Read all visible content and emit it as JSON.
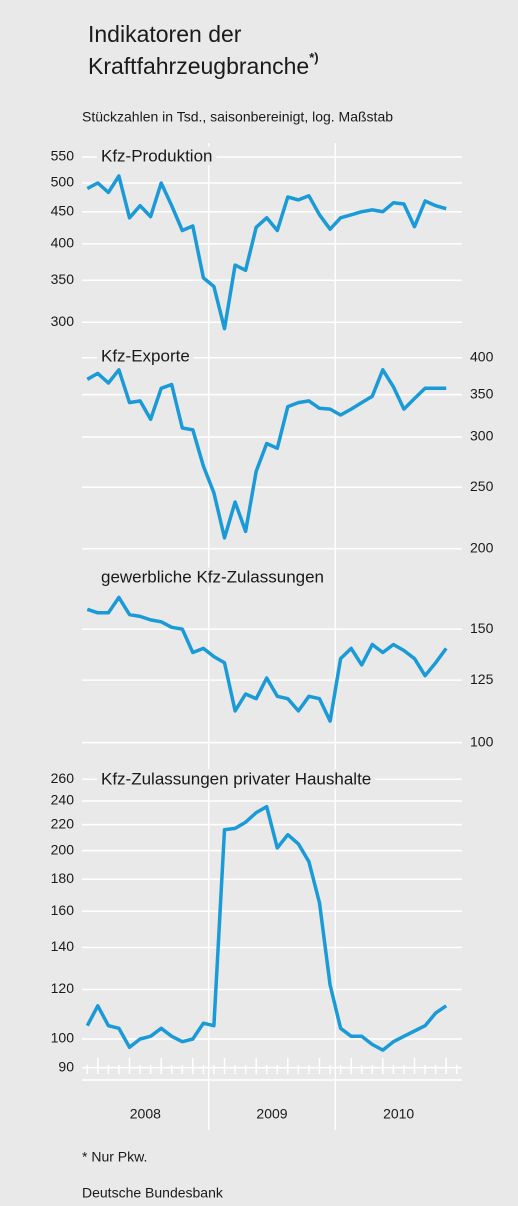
{
  "header": {
    "title_lines": [
      "Indikatoren der",
      "Kraftfahrzeugbranche"
    ],
    "title_note": "*)",
    "subtitle": "Stückzahlen in Tsd., saisonbereinigt, log. Maßstab"
  },
  "x_axis": {
    "labels": [
      "2008",
      "2009",
      "2010"
    ]
  },
  "chart_data": [
    {
      "type": "line",
      "title": "Kfz-Produktion",
      "log_scale": true,
      "axis_side": "left",
      "color": "#1a9ad6",
      "values": [
        490,
        500,
        483,
        513,
        440,
        460,
        442,
        500,
        460,
        420,
        427,
        353,
        342,
        293,
        370,
        363,
        425,
        440,
        420,
        475,
        470,
        477,
        445,
        422,
        440,
        445,
        450,
        453,
        450,
        465,
        463,
        426,
        468,
        460,
        455
      ],
      "ylim": [
        276,
        579
      ],
      "yticks": [
        300,
        350,
        400,
        450,
        500,
        550
      ]
    },
    {
      "type": "line",
      "title": "Kfz-Exporte",
      "log_scale": true,
      "axis_side": "right",
      "color": "#1a9ad6",
      "values": [
        370,
        378,
        365,
        383,
        340,
        342,
        320,
        358,
        363,
        310,
        308,
        270,
        245,
        208,
        237,
        213,
        265,
        293,
        288,
        335,
        340,
        342,
        333,
        332,
        325,
        332,
        340,
        348,
        383,
        360,
        332,
        345,
        358,
        358,
        358
      ],
      "ylim": [
        192,
        419
      ],
      "yticks": [
        200,
        250,
        300,
        350,
        400
      ]
    },
    {
      "type": "line",
      "title": "gewerbliche Kfz-Zulassungen",
      "log_scale": true,
      "axis_side": "right",
      "color": "#1a9ad6",
      "values": [
        161,
        159,
        159,
        168,
        158,
        157,
        155,
        154,
        151,
        150,
        138,
        140,
        136,
        133,
        112,
        119,
        117,
        126,
        118,
        117,
        112,
        118,
        117,
        108,
        135,
        140,
        132,
        142,
        138,
        142,
        139,
        135,
        127,
        133,
        140
      ],
      "ylim": [
        94,
        192
      ],
      "yticks": [
        100,
        125,
        150
      ]
    },
    {
      "type": "line",
      "title": "Kfz-Zulassungen privater Haushalte",
      "log_scale": true,
      "axis_side": "left",
      "color": "#1a9ad6",
      "values": [
        105,
        113,
        105,
        104,
        97,
        100,
        101,
        104,
        101,
        99,
        100,
        106,
        105,
        216,
        217,
        222,
        230,
        235,
        202,
        212,
        205,
        192,
        165,
        122,
        104,
        101,
        101,
        98,
        96,
        99,
        101,
        103,
        105,
        110,
        113
      ],
      "ylim": [
        86,
        274
      ],
      "yticks": [
        90,
        100,
        120,
        140,
        160,
        180,
        200,
        220,
        240,
        260
      ]
    }
  ],
  "footer": {
    "note": "* Nur Pkw.",
    "source": "Deutsche Bundesbank"
  }
}
